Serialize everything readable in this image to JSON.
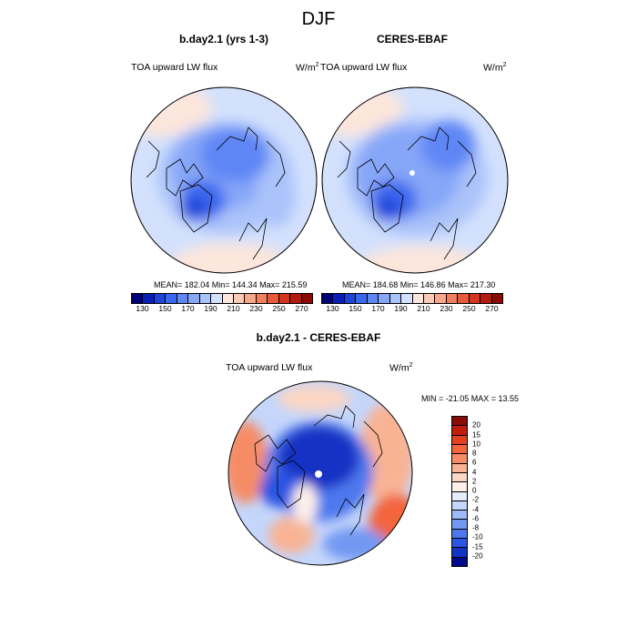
{
  "title": "DJF",
  "panels": [
    {
      "title": "b.day2.1 (yrs 1-3)",
      "variable": "TOA upward LW flux",
      "units": "W/m",
      "units_sup": "2",
      "stats": "MEAN= 182.04  Min= 144.34  Max= 215.59"
    },
    {
      "title": "CERES-EBAF",
      "variable": "TOA upward LW flux",
      "units": "W/m",
      "units_sup": "2",
      "stats": "MEAN= 184.68  Min= 146.86  Max= 217.30"
    }
  ],
  "diff_panel": {
    "title": "b.day2.1 - CERES-EBAF",
    "variable": "TOA upward LW flux",
    "units": "W/m",
    "units_sup": "2",
    "stats": "MIN = -21.05 MAX =  13.55"
  },
  "abs_colorbar": {
    "labels": [
      "130",
      "150",
      "170",
      "190",
      "210",
      "230",
      "250",
      "270"
    ],
    "colors": [
      "#00007a",
      "#0a1fb5",
      "#1f44d9",
      "#3b66ee",
      "#5f86f5",
      "#86a6f8",
      "#aac3fa",
      "#d3e1fd",
      "#fde6dc",
      "#fbcbb6",
      "#f6a98a",
      "#f08060",
      "#e65a3a",
      "#d5341d",
      "#b51a0e",
      "#8a0a05"
    ]
  },
  "diff_colorbar": {
    "labels": [
      "20",
      "15",
      "10",
      "8",
      "6",
      "4",
      "2",
      "0",
      "-2",
      "-4",
      "-6",
      "-8",
      "-10",
      "-15",
      "-20"
    ],
    "colors": [
      "#8a0a05",
      "#c11d0c",
      "#e3401e",
      "#f2653d",
      "#f68c66",
      "#f9b394",
      "#fbd6c4",
      "#fdf0ea",
      "#e6eefd",
      "#c4d6fb",
      "#9cb9f8",
      "#7298f3",
      "#4d78ee",
      "#2b55e3",
      "#1233c4",
      "#000a8a"
    ]
  }
}
